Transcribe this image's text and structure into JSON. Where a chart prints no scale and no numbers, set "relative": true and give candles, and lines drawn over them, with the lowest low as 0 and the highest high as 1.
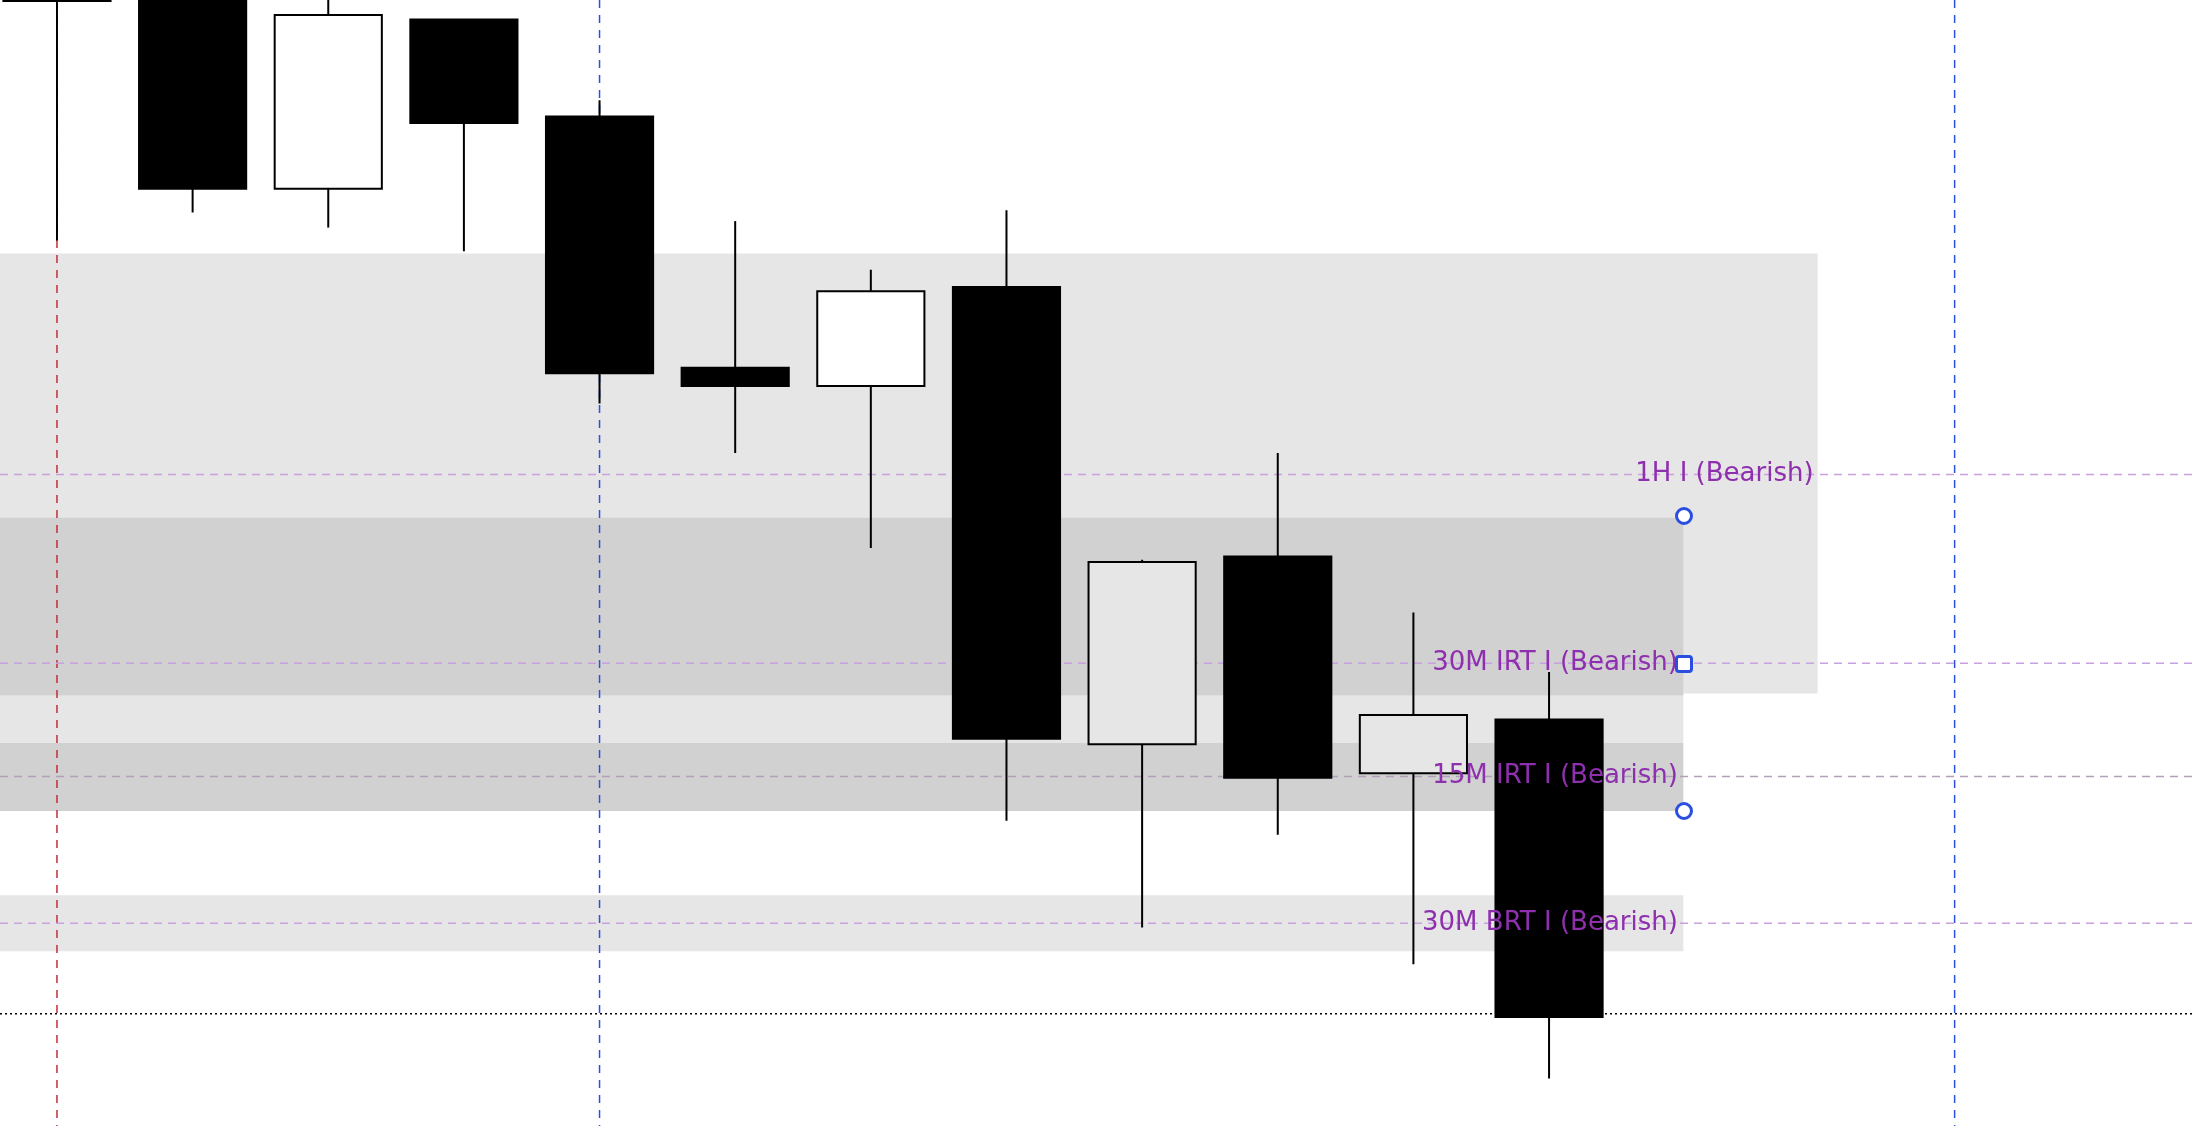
{
  "chart_data": {
    "type": "candlestick",
    "relative": true,
    "categories": [
      null,
      null,
      null,
      null,
      null,
      null,
      null,
      null,
      null,
      null,
      null,
      null,
      null,
      null,
      null,
      null
    ],
    "ohlc": [
      [
        1,
        1,
        0.777,
        1
      ],
      [
        1,
        1,
        0.803,
        0.825
      ],
      [
        0.825,
        1,
        0.789,
        0.986
      ],
      [
        0.982,
        0.982,
        0.767,
        0.886
      ],
      [
        0.892,
        0.907,
        0.626,
        0.654
      ],
      [
        0.659,
        0.795,
        0.58,
        0.642
      ],
      [
        0.642,
        0.75,
        0.492,
        0.73
      ],
      [
        0.734,
        0.805,
        0.239,
        0.315
      ],
      [
        0.31,
        0.481,
        0.14,
        0.479
      ],
      [
        0.484,
        0.58,
        0.226,
        0.279
      ],
      [
        0.283,
        0.432,
        0.106,
        0.337
      ],
      [
        0.333,
        0.377,
        0,
        0.057
      ],
      null,
      null,
      null,
      null
    ],
    "colors": [
      "#000000",
      "#000000",
      "#ffffff",
      "#000000",
      "#000000",
      "#000000",
      "#ffffff",
      "#000000",
      "#e6e6e6",
      "#000000",
      "#e6e6e6",
      "#000000",
      null,
      null,
      null,
      null
    ],
    "bands": [
      {
        "axis": "y",
        "from": 0.357,
        "to": 0.765,
        "color": "#e6e6e6"
      },
      {
        "axis": "y",
        "from": 0.355,
        "to": 0.52,
        "color": "#d1d1d1"
      },
      {
        "axis": "y",
        "from": 0.311,
        "to": 0.355,
        "color": "#e6e6e6"
      },
      {
        "axis": "y",
        "from": 0.248,
        "to": 0.311,
        "color": "#d1d1d1"
      },
      {
        "axis": "y",
        "from": 0.118,
        "to": 0.17,
        "color": "#e6e6e6"
      }
    ],
    "ref_lines": [
      {
        "axis": "y",
        "value": 0.56,
        "label": "1H I (Bearish)",
        "color": "#c9a0e0",
        "line_style": "dashed"
      },
      {
        "axis": "y",
        "value": 0.385,
        "label": "30M IRT I (Bearish)",
        "color": "#c9a0e0",
        "line_style": "dashed"
      },
      {
        "axis": "y",
        "value": 0.28,
        "label": "15M IRT I (Bearish)",
        "color": "#b0a0b8",
        "line_style": "dashed"
      },
      {
        "axis": "y",
        "value": 0.144,
        "label": "30M BRT I (Bearish)",
        "color": "#c9a0e0",
        "line_style": "dashed"
      },
      {
        "axis": "y",
        "value": 0.06,
        "color": "#000000",
        "line_style": "dotted"
      }
    ]
  }
}
